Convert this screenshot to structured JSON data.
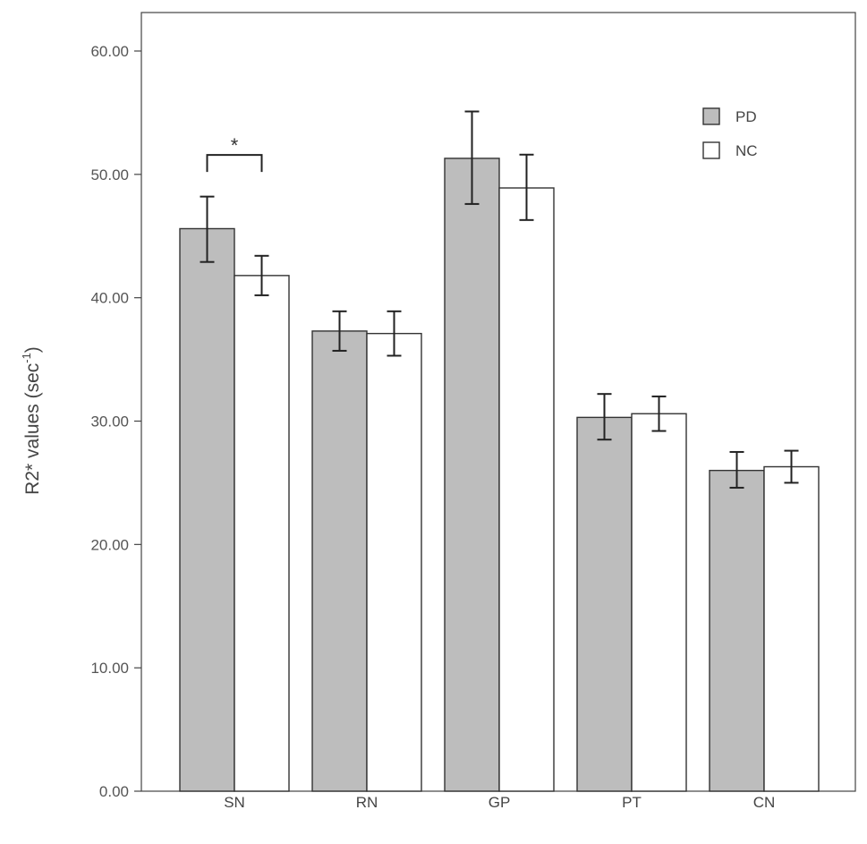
{
  "chart_data": {
    "type": "bar",
    "ylabel": "R2* values (sec",
    "ylabel_superscript": "-1",
    "ylabel_close": ")",
    "xlabel": "",
    "ylim": [
      0,
      60
    ],
    "y_ticks": [
      0,
      10,
      20,
      30,
      40,
      50,
      60
    ],
    "y_tick_labels": [
      "0.00",
      "10.00",
      "20.00",
      "30.00",
      "40.00",
      "50.00",
      "60.00"
    ],
    "categories": [
      "SN",
      "RN",
      "GP",
      "PT",
      "CN"
    ],
    "series": [
      {
        "name": "PD",
        "color": "#bdbdbd",
        "values": [
          45.6,
          37.3,
          51.3,
          30.3,
          26.0
        ],
        "error_low": [
          42.9,
          35.7,
          47.6,
          28.5,
          24.6
        ],
        "error_high": [
          48.2,
          38.9,
          55.1,
          32.2,
          27.5
        ]
      },
      {
        "name": "NC",
        "color": "#ffffff",
        "values": [
          41.8,
          37.1,
          48.9,
          30.6,
          26.3
        ],
        "error_low": [
          40.2,
          35.3,
          46.3,
          29.2,
          25.0
        ],
        "error_high": [
          43.4,
          38.9,
          51.6,
          32.0,
          27.6
        ]
      }
    ],
    "annotations": [
      {
        "category": "SN",
        "text": "*",
        "y": 51.5
      }
    ],
    "grid": false,
    "legend_position": "top-right"
  }
}
